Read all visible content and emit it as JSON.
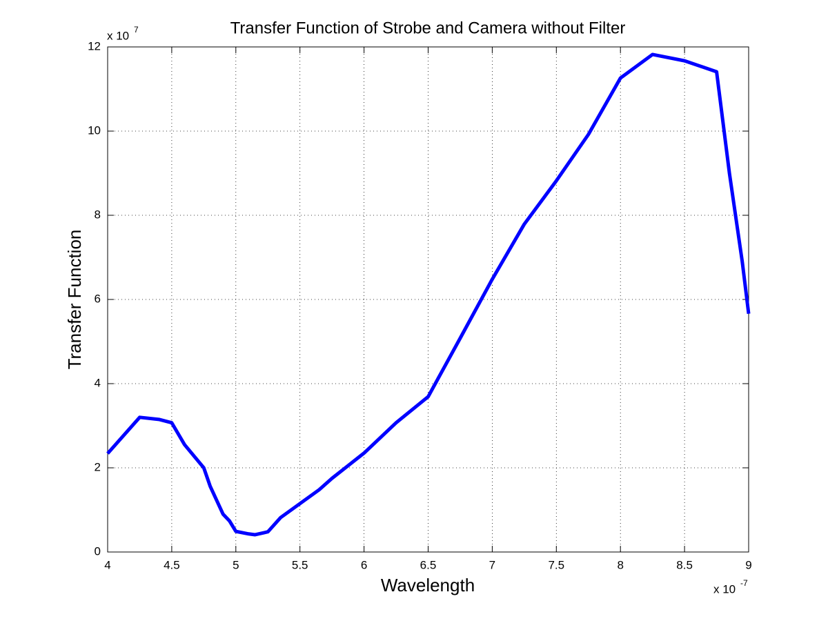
{
  "chart_data": {
    "type": "line",
    "title": "Transfer Function of Strobe and Camera without Filter",
    "x_label": "Wavelength",
    "y_label": "Transfer Function",
    "x_multiplier": {
      "base": "x 10",
      "exponent": "-7"
    },
    "y_multiplier": {
      "base": "x 10",
      "exponent": "7"
    },
    "x": [
      4.0,
      4.25,
      4.4,
      4.5,
      4.6,
      4.75,
      4.8,
      4.9,
      4.95,
      5.0,
      5.1,
      5.15,
      5.25,
      5.35,
      5.5,
      5.65,
      5.75,
      6.0,
      6.25,
      6.5,
      6.75,
      7.0,
      7.25,
      7.5,
      7.75,
      8.0,
      8.25,
      8.5,
      8.75,
      8.85,
      8.95,
      9.0
    ],
    "series": [
      {
        "color": "#0000ff",
        "values": [
          2.34,
          3.2,
          3.15,
          3.07,
          2.55,
          2.0,
          1.56,
          0.9,
          0.74,
          0.49,
          0.43,
          0.41,
          0.48,
          0.82,
          1.15,
          1.48,
          1.75,
          2.35,
          3.07,
          3.69,
          5.08,
          6.48,
          7.79,
          8.82,
          9.92,
          11.26,
          11.82,
          11.67,
          11.41,
          9.0,
          6.9,
          5.66
        ]
      }
    ],
    "xlim": [
      4,
      9
    ],
    "ylim": [
      0,
      12
    ],
    "xticks": [
      4,
      4.5,
      5,
      5.5,
      6,
      6.5,
      7,
      7.5,
      8,
      8.5,
      9
    ],
    "yticks": [
      0,
      2,
      4,
      6,
      8,
      10,
      12
    ],
    "grid": true
  }
}
